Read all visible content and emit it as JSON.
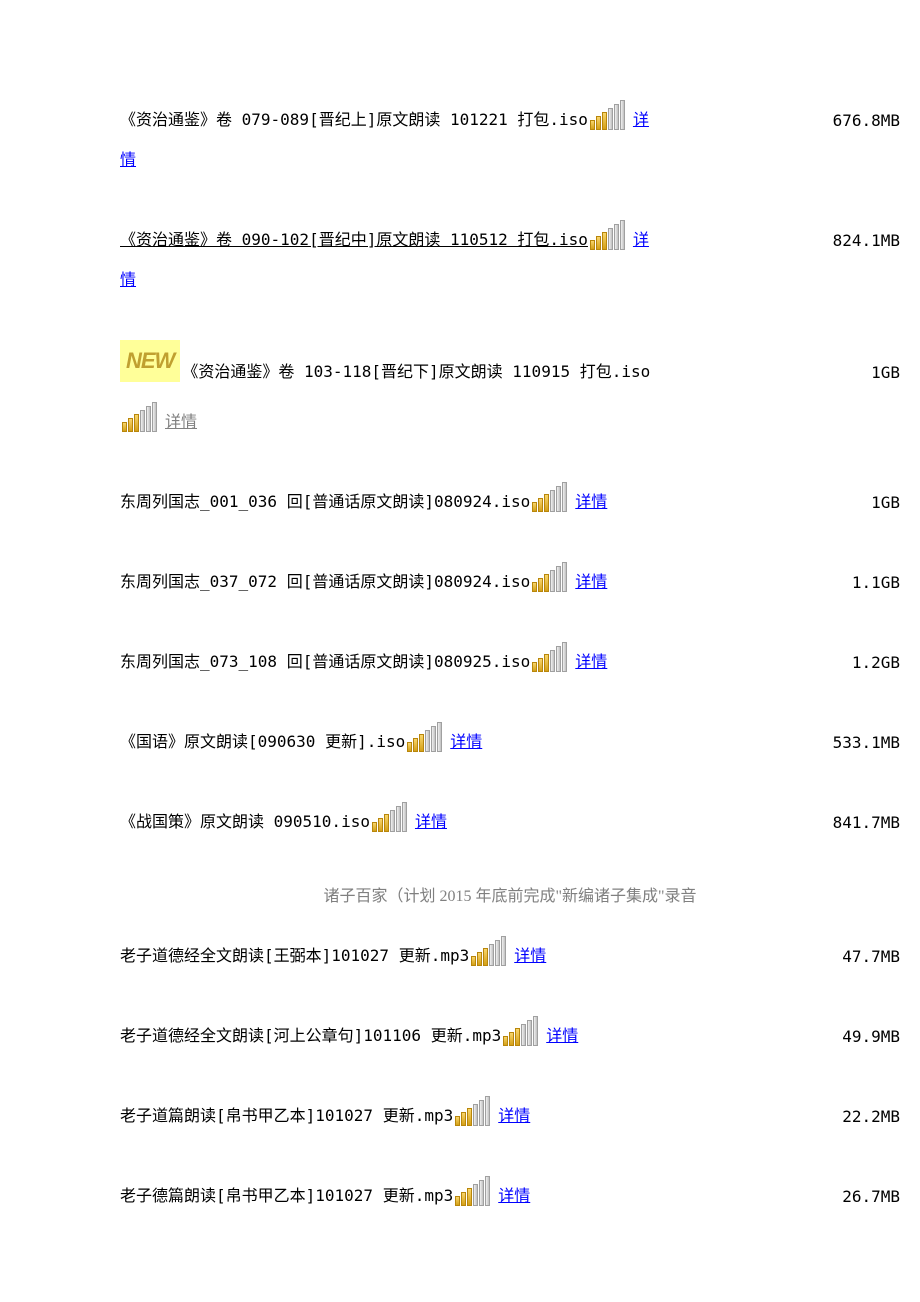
{
  "items": [
    {
      "filename": "《资治通鉴》卷 079-089[晋纪上]原文朗读 101221 打包.iso",
      "link": false,
      "details": "详",
      "details_cont": "情",
      "details_style": "blue",
      "size": "676.8MB",
      "spacing": "loose",
      "new": false,
      "wrapped": true
    },
    {
      "filename": "《资治通鉴》卷 090-102[晋纪中]原文朗读 110512 打包.iso",
      "link": true,
      "details": "详",
      "details_cont": "情",
      "details_style": "blue",
      "size": "824.1MB",
      "spacing": "loose",
      "new": false,
      "wrapped": true
    },
    {
      "filename": "《资治通鉴》卷 103-118[晋纪下]原文朗读 110915 打包.iso",
      "link": false,
      "details": "详情",
      "details_cont": "",
      "details_style": "gray",
      "size": "1GB",
      "spacing": "loose",
      "new": true,
      "wrapped": false,
      "special_layout": true
    },
    {
      "filename": "东周列国志_001_036 回[普通话原文朗读]080924.iso",
      "link": false,
      "details": "详情",
      "details_cont": "",
      "details_style": "blue",
      "size": "1GB",
      "spacing": "loose",
      "new": false,
      "wrapped": false
    },
    {
      "filename": "东周列国志_037_072 回[普通话原文朗读]080924.iso",
      "link": false,
      "details": "详情",
      "details_cont": "",
      "details_style": "blue",
      "size": "1.1GB",
      "spacing": "loose",
      "new": false,
      "wrapped": false
    },
    {
      "filename": "东周列国志_073_108 回[普通话原文朗读]080925.iso",
      "link": false,
      "details": "详情",
      "details_cont": "",
      "details_style": "blue",
      "size": "1.2GB",
      "spacing": "loose",
      "new": false,
      "wrapped": false
    },
    {
      "filename": "《国语》原文朗读[090630 更新].iso",
      "link": false,
      "details": "详情",
      "details_cont": "",
      "details_style": "blue",
      "size": "533.1MB",
      "spacing": "loose",
      "new": false,
      "wrapped": false
    },
    {
      "filename": "《战国策》原文朗读 090510.iso",
      "link": false,
      "details": "详情",
      "details_cont": "",
      "details_style": "blue",
      "size": "841.7MB",
      "spacing": "tight_after",
      "new": false,
      "wrapped": false
    }
  ],
  "section_header": "诸子百家（计划 2015 年底前完成\"新编诸子集成\"录音",
  "items2": [
    {
      "filename": "老子道德经全文朗读[王弼本]101027 更新.mp3",
      "link": false,
      "details": "详情",
      "details_style": "blue",
      "size": "47.7MB"
    },
    {
      "filename": "老子道德经全文朗读[河上公章句]101106 更新.mp3",
      "link": false,
      "details": "详情",
      "details_style": "blue",
      "size": "49.9MB"
    },
    {
      "filename": "老子道篇朗读[帛书甲乙本]101027 更新.mp3",
      "link": false,
      "details": "详情",
      "details_style": "blue",
      "size": "22.2MB"
    },
    {
      "filename": "老子德篇朗读[帛书甲乙本]101027 更新.mp3",
      "link": false,
      "details": "详情",
      "details_style": "blue",
      "size": "26.7MB"
    }
  ],
  "new_badge_text": "NEW",
  "signal": {
    "gold_count": 3,
    "gray_count": 3,
    "heights": [
      10,
      14,
      18,
      22,
      26,
      30
    ]
  }
}
